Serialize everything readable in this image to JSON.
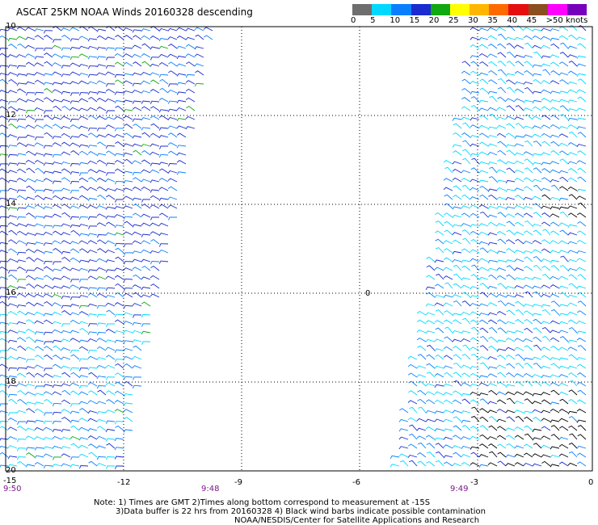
{
  "title": "ASCAT 25KM NOAA Winds 20160328 descending",
  "legend": {
    "colors": [
      "#6e6e6e",
      "#00d8ff",
      "#0a7ffd",
      "#1a2bd0",
      "#11a811",
      "#ffff00",
      "#ffb600",
      "#ff6a00",
      "#e60f0f",
      "#8b4f1f",
      "#ff00ff",
      "#7700bb"
    ],
    "labels": [
      "0",
      "5",
      "10",
      "15",
      "20",
      "25",
      "30",
      "35",
      "40",
      "45",
      ">50 knots"
    ]
  },
  "axes": {
    "lat_labels": [
      "10",
      "12",
      "14",
      "16",
      "18",
      "20"
    ],
    "lon_labels": [
      "-15",
      "-12",
      "-9",
      "-6",
      "-3",
      "0"
    ]
  },
  "times": {
    "left": "9:50",
    "middle": "9:48",
    "right": "9:49",
    "color": "#7a1a8a"
  },
  "notes": {
    "line1": "Note: 1) Times are GMT 2)Times along bottom correspond to measurement at -15S",
    "line2": "3)Data buffer is 22 hrs from 20160328 4) Black wind barbs indicate possible contamination",
    "line3": "NOAA/NESDIS/Center for Satellite Applications and Research"
  },
  "marker_symbol": "0"
}
